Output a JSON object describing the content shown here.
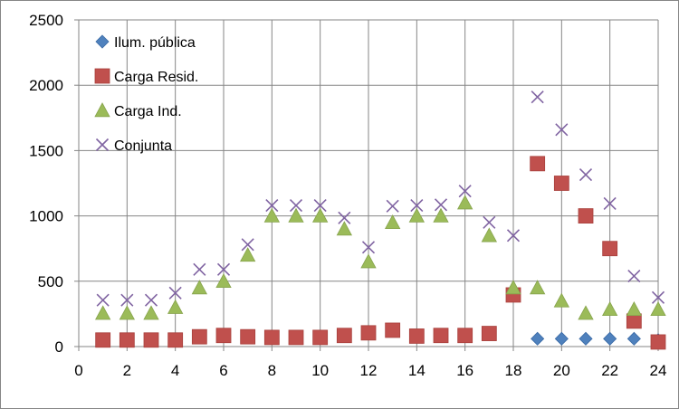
{
  "chart_data": {
    "type": "scatter",
    "title": "",
    "xlabel": "",
    "ylabel": "",
    "xlim": [
      0,
      24
    ],
    "ylim": [
      0,
      2500
    ],
    "x_ticks": [
      0,
      2,
      4,
      6,
      8,
      10,
      12,
      14,
      16,
      18,
      20,
      22,
      24
    ],
    "y_ticks": [
      0,
      500,
      1000,
      1500,
      2000,
      2500
    ],
    "grid": "vertical and horizontal major gridlines",
    "legend_position": "top-left inside plot",
    "series": [
      {
        "name": "Ilum. pública",
        "marker": "diamond",
        "color": "#4F81BD",
        "x": [
          19,
          20,
          21,
          22,
          23,
          24
        ],
        "y": [
          60,
          60,
          60,
          60,
          60,
          50
        ]
      },
      {
        "name": "Carga Resid.",
        "marker": "square",
        "color": "#C0504D",
        "x": [
          1,
          2,
          3,
          4,
          5,
          6,
          7,
          8,
          9,
          10,
          11,
          12,
          13,
          14,
          15,
          16,
          17,
          18,
          19,
          20,
          21,
          22,
          23,
          24
        ],
        "y": [
          50,
          50,
          50,
          50,
          75,
          85,
          75,
          70,
          70,
          70,
          85,
          105,
          125,
          80,
          85,
          85,
          100,
          395,
          1400,
          1250,
          1000,
          750,
          195,
          35
        ]
      },
      {
        "name": "Carga Ind.",
        "marker": "triangle",
        "color": "#9BBB59",
        "x": [
          1,
          2,
          3,
          4,
          5,
          6,
          7,
          8,
          9,
          10,
          11,
          12,
          13,
          14,
          15,
          16,
          17,
          18,
          19,
          20,
          21,
          22,
          23,
          24
        ],
        "y": [
          255,
          255,
          255,
          300,
          450,
          500,
          700,
          1000,
          1000,
          1000,
          900,
          650,
          950,
          1000,
          1000,
          1100,
          850,
          450,
          450,
          350,
          255,
          285,
          285,
          285
        ]
      },
      {
        "name": "Conjunta",
        "marker": "x",
        "color": "#8064A2",
        "x": [
          1,
          2,
          3,
          4,
          5,
          6,
          7,
          8,
          9,
          10,
          11,
          12,
          13,
          14,
          15,
          16,
          17,
          18,
          19,
          20,
          21,
          22,
          23,
          24
        ],
        "y": [
          355,
          355,
          355,
          410,
          590,
          590,
          780,
          1080,
          1080,
          1080,
          985,
          760,
          1075,
          1080,
          1085,
          1190,
          950,
          850,
          1910,
          1660,
          1315,
          1095,
          540,
          375
        ]
      }
    ]
  }
}
